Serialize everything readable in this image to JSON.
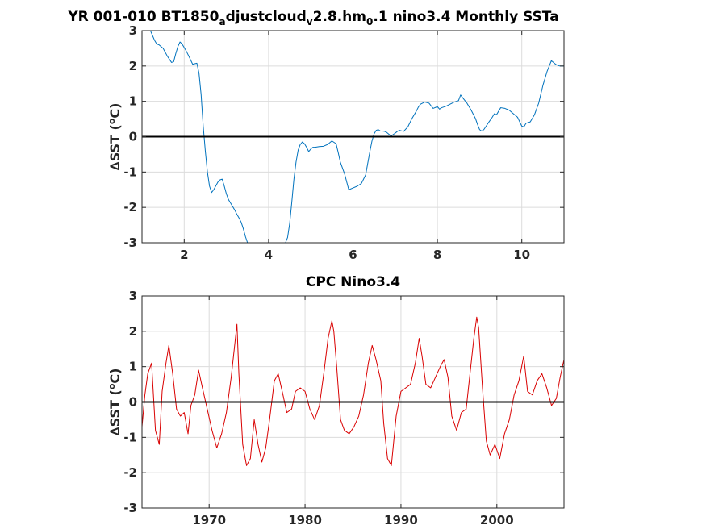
{
  "chart_data": [
    {
      "type": "line",
      "title_parts": [
        {
          "t": "YR 001-010 BT1850"
        },
        {
          "t": "a",
          "sub": true
        },
        {
          "t": "djustcloud"
        },
        {
          "t": "v",
          "sub": true
        },
        {
          "t": "2.8.hm"
        },
        {
          "t": "0",
          "sub": true
        },
        {
          "t": ".1 nino3.4 Monthly SSTa"
        }
      ],
      "ylabel_parts": [
        {
          "t": "∆SST ("
        },
        {
          "t": "o",
          "sup": true
        },
        {
          "t": "C)"
        }
      ],
      "xlim": [
        1,
        11
      ],
      "ylim": [
        -3,
        3
      ],
      "xticks": [
        2,
        4,
        6,
        8,
        10
      ],
      "yticks": [
        -3,
        -2,
        -1,
        0,
        1,
        2,
        3
      ],
      "grid": true,
      "zero_line": true,
      "series": [
        {
          "color": "#0072BD",
          "x": [
            1.2,
            1.3,
            1.35,
            1.4,
            1.5,
            1.6,
            1.7,
            1.75,
            1.8,
            1.85,
            1.9,
            1.95,
            2.0,
            2.05,
            2.1,
            2.2,
            2.3,
            2.35,
            2.4,
            2.45,
            2.5,
            2.55,
            2.6,
            2.65,
            2.7,
            2.8,
            2.85,
            2.9,
            2.95,
            3.0,
            3.05,
            3.1,
            3.2,
            3.25,
            3.3,
            3.35,
            3.4,
            3.45,
            3.5,
            3.55,
            4.4,
            4.45,
            4.5,
            4.55,
            4.6,
            4.65,
            4.7,
            4.75,
            4.8,
            4.85,
            4.9,
            4.95,
            5.0,
            5.05,
            5.1,
            5.2,
            5.3,
            5.4,
            5.5,
            5.6,
            5.65,
            5.7,
            5.8,
            5.9,
            6.0,
            6.1,
            6.2,
            6.3,
            6.35,
            6.4,
            6.45,
            6.5,
            6.55,
            6.6,
            6.65,
            6.7,
            6.75,
            6.8,
            6.9,
            7.0,
            7.05,
            7.1,
            7.2,
            7.3,
            7.4,
            7.5,
            7.55,
            7.6,
            7.7,
            7.8,
            7.9,
            8.0,
            8.05,
            8.1,
            8.2,
            8.3,
            8.4,
            8.45,
            8.5,
            8.55,
            8.6,
            8.7,
            8.8,
            8.9,
            8.95,
            9.0,
            9.05,
            9.1,
            9.2,
            9.3,
            9.35,
            9.4,
            9.5,
            9.6,
            9.7,
            9.8,
            9.9,
            9.95,
            10.0,
            10.05,
            10.1,
            10.2,
            10.3,
            10.4,
            10.5,
            10.6,
            10.7,
            10.8,
            10.85,
            10.9,
            11.0
          ],
          "y": [
            3.0,
            2.72,
            2.62,
            2.6,
            2.5,
            2.28,
            2.1,
            2.12,
            2.35,
            2.55,
            2.68,
            2.62,
            2.52,
            2.42,
            2.3,
            2.05,
            2.08,
            1.8,
            1.2,
            0.3,
            -0.4,
            -1.0,
            -1.4,
            -1.58,
            -1.5,
            -1.28,
            -1.22,
            -1.2,
            -1.4,
            -1.62,
            -1.78,
            -1.88,
            -2.08,
            -2.2,
            -2.3,
            -2.42,
            -2.6,
            -2.82,
            -3.0,
            -3.0,
            -3.0,
            -2.85,
            -2.45,
            -1.85,
            -1.2,
            -0.72,
            -0.38,
            -0.22,
            -0.15,
            -0.2,
            -0.3,
            -0.42,
            -0.35,
            -0.3,
            -0.3,
            -0.28,
            -0.27,
            -0.22,
            -0.12,
            -0.2,
            -0.45,
            -0.72,
            -1.05,
            -1.5,
            -1.45,
            -1.4,
            -1.32,
            -1.08,
            -0.75,
            -0.42,
            -0.12,
            0.08,
            0.18,
            0.2,
            0.16,
            0.16,
            0.15,
            0.12,
            0.02,
            0.1,
            0.15,
            0.18,
            0.15,
            0.28,
            0.52,
            0.72,
            0.84,
            0.92,
            0.98,
            0.95,
            0.8,
            0.85,
            0.78,
            0.82,
            0.86,
            0.92,
            0.98,
            1.0,
            1.02,
            1.18,
            1.1,
            0.95,
            0.75,
            0.52,
            0.35,
            0.2,
            0.16,
            0.2,
            0.38,
            0.55,
            0.65,
            0.62,
            0.82,
            0.8,
            0.75,
            0.65,
            0.55,
            0.42,
            0.3,
            0.28,
            0.38,
            0.42,
            0.62,
            0.95,
            1.45,
            1.85,
            2.15,
            2.05,
            2.02,
            2.0,
            2.0
          ]
        }
      ]
    },
    {
      "type": "line",
      "title_parts": [
        {
          "t": "CPC Nino3.4"
        }
      ],
      "ylabel_parts": [
        {
          "t": "∆SST ("
        },
        {
          "t": "o",
          "sup": true
        },
        {
          "t": "C)"
        }
      ],
      "xlim": [
        1963,
        2007
      ],
      "ylim": [
        -3,
        3
      ],
      "xticks": [
        1970,
        1980,
        1990,
        2000
      ],
      "yticks": [
        -3,
        -2,
        -1,
        0,
        1,
        2,
        3
      ],
      "grid": true,
      "zero_line": true,
      "series": [
        {
          "color": "#D90000",
          "x": [
            1963.0,
            1963.3,
            1963.6,
            1964.0,
            1964.4,
            1964.8,
            1965.1,
            1965.5,
            1965.8,
            1966.2,
            1966.6,
            1967.0,
            1967.4,
            1967.8,
            1968.1,
            1968.5,
            1968.9,
            1969.3,
            1969.8,
            1970.3,
            1970.8,
            1971.3,
            1971.8,
            1972.3,
            1972.7,
            1972.9,
            1973.1,
            1973.5,
            1973.9,
            1974.3,
            1974.7,
            1975.1,
            1975.5,
            1975.9,
            1976.3,
            1976.8,
            1977.2,
            1977.7,
            1978.1,
            1978.6,
            1979.0,
            1979.5,
            1980.0,
            1980.5,
            1981.0,
            1981.5,
            1982.0,
            1982.4,
            1982.8,
            1983.0,
            1983.3,
            1983.7,
            1984.1,
            1984.6,
            1985.1,
            1985.6,
            1986.1,
            1986.6,
            1987.0,
            1987.4,
            1987.9,
            1988.2,
            1988.6,
            1989.0,
            1989.5,
            1990.0,
            1990.5,
            1991.0,
            1991.5,
            1991.9,
            1992.2,
            1992.6,
            1993.1,
            1993.6,
            1994.1,
            1994.5,
            1994.9,
            1995.3,
            1995.8,
            1996.3,
            1996.8,
            1997.2,
            1997.6,
            1997.9,
            1998.1,
            1998.5,
            1998.9,
            1999.3,
            1999.8,
            2000.3,
            2000.8,
            2001.3,
            2001.8,
            2002.3,
            2002.8,
            2003.2,
            2003.7,
            2004.2,
            2004.7,
            2005.2,
            2005.7,
            2006.2,
            2006.6,
            2007.0
          ],
          "y": [
            -0.7,
            0.2,
            0.8,
            1.1,
            -0.8,
            -1.2,
            0.3,
            1.1,
            1.6,
            0.8,
            -0.2,
            -0.4,
            -0.3,
            -0.9,
            -0.1,
            0.2,
            0.9,
            0.4,
            -0.2,
            -0.8,
            -1.3,
            -0.9,
            -0.3,
            0.7,
            1.7,
            2.2,
            0.8,
            -1.2,
            -1.8,
            -1.6,
            -0.5,
            -1.2,
            -1.7,
            -1.3,
            -0.5,
            0.6,
            0.8,
            0.2,
            -0.3,
            -0.2,
            0.3,
            0.4,
            0.3,
            -0.2,
            -0.5,
            -0.1,
            0.9,
            1.8,
            2.3,
            2.0,
            1.0,
            -0.5,
            -0.8,
            -0.9,
            -0.7,
            -0.4,
            0.2,
            1.1,
            1.6,
            1.2,
            0.6,
            -0.6,
            -1.6,
            -1.8,
            -0.4,
            0.3,
            0.4,
            0.5,
            1.1,
            1.8,
            1.3,
            0.5,
            0.4,
            0.7,
            1.0,
            1.2,
            0.7,
            -0.4,
            -0.8,
            -0.3,
            -0.2,
            0.8,
            1.8,
            2.4,
            2.1,
            0.4,
            -1.1,
            -1.5,
            -1.2,
            -1.6,
            -0.9,
            -0.5,
            0.2,
            0.6,
            1.3,
            0.3,
            0.2,
            0.6,
            0.8,
            0.4,
            -0.1,
            0.1,
            0.7,
            1.2
          ]
        }
      ]
    }
  ]
}
